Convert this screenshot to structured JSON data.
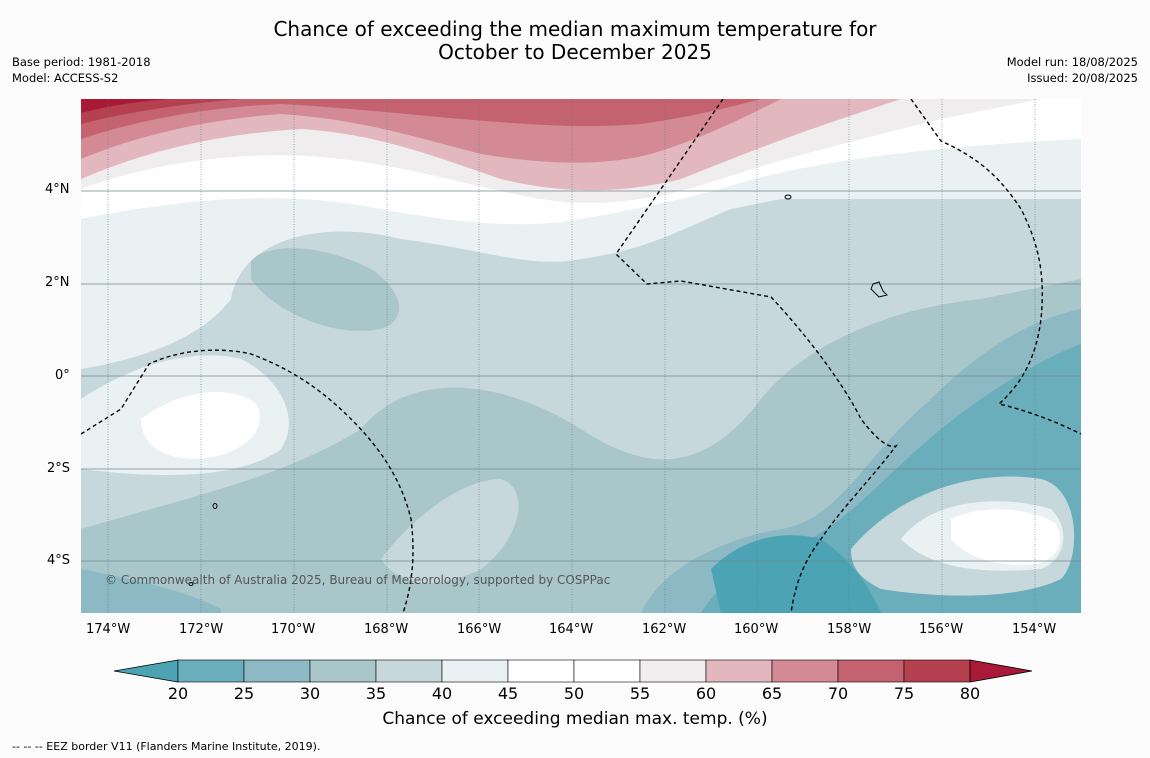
{
  "title": {
    "line1": "Chance of exceeding the median maximum temperature for",
    "line2": "October to December 2025"
  },
  "meta_left": {
    "base_period": "Base period: 1981-2018",
    "model": "Model: ACCESS-S2"
  },
  "meta_right": {
    "model_run": "Model run: 18/08/2025",
    "issued": "Issued: 20/08/2025"
  },
  "map": {
    "lon_ticks": [
      "174°W",
      "172°W",
      "170°W",
      "168°W",
      "166°W",
      "164°W",
      "162°W",
      "160°W",
      "158°W",
      "156°W",
      "154°W"
    ],
    "lat_ticks": [
      "4°N",
      "2°N",
      "0°",
      "2°S",
      "4°S"
    ],
    "attribution": "© Commonwealth of Australia 2025, Bureau of Meteorology, supported by COSPPac"
  },
  "colorbar": {
    "label": "Chance of exceeding median max. temp. (%)",
    "ticks": [
      "20",
      "25",
      "30",
      "35",
      "40",
      "45",
      "50",
      "55",
      "60",
      "65",
      "70",
      "75",
      "80"
    ],
    "colors": [
      "#4ba3b3",
      "#6aaebb",
      "#8cb9c4",
      "#a9c6cb",
      "#c7d8dc",
      "#eaf1f3",
      "#ffffff",
      "#ffffff",
      "#efeded",
      "#e2b8be",
      "#d48a94",
      "#c4636f",
      "#b5404f",
      "#a91a37"
    ]
  },
  "footnote": "-- -- -- EEZ border V11 (Flanders Marine Institute, 2019)."
}
